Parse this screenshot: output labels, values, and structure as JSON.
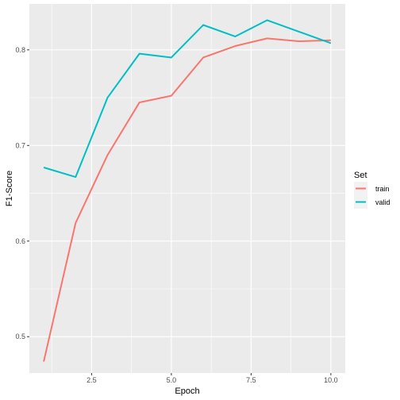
{
  "chart_data": {
    "type": "line",
    "xlabel": "Epoch",
    "ylabel": "F1-Score",
    "xlim": [
      0.55,
      10.45
    ],
    "ylim": [
      0.462,
      0.848
    ],
    "x_ticks": [
      2.5,
      5.0,
      7.5,
      10.0
    ],
    "x_tick_labels": [
      "2.5",
      "5.0",
      "7.5",
      "10.0"
    ],
    "y_ticks": [
      0.5,
      0.6,
      0.7,
      0.8
    ],
    "y_tick_labels": [
      "0.5",
      "0.6",
      "0.7",
      "0.8"
    ],
    "grid": true,
    "legend_title": "Set",
    "legend_position": "right",
    "x": [
      1,
      2,
      3,
      4,
      5,
      6,
      7,
      8,
      9,
      10
    ],
    "series": [
      {
        "name": "train",
        "color": "#F8766D",
        "values": [
          0.474,
          0.619,
          0.69,
          0.745,
          0.752,
          0.792,
          0.804,
          0.812,
          0.809,
          0.81
        ]
      },
      {
        "name": "valid",
        "color": "#00BFC4",
        "values": [
          0.677,
          0.667,
          0.75,
          0.796,
          0.792,
          0.826,
          0.814,
          0.831,
          0.819,
          0.807
        ]
      }
    ]
  }
}
